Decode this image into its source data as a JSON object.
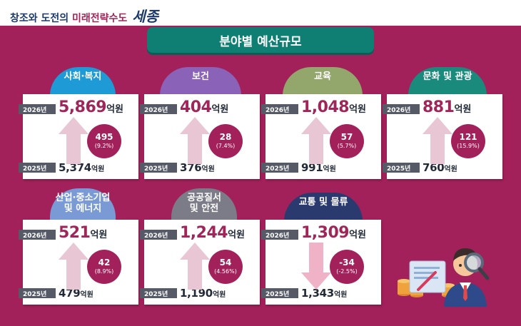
{
  "header": {
    "slogan_part1": "창조와 도전의",
    "slogan_part2": "미래전략수도",
    "slogan_part3": "세종"
  },
  "title": "분야별 예산규모",
  "colors": {
    "background": "#a3215a",
    "banner": "#0e7f72",
    "increase_arrow": "#e9c6d3",
    "decrease_arrow": "#f0b2c7"
  },
  "year_labels": {
    "current": "2026년",
    "previous": "2025년"
  },
  "unit_label": "억원",
  "categories": [
    {
      "name": "사회·복지",
      "y2026": "5,869",
      "y2025": "5,374",
      "diff": "495",
      "rate": "(9.2%)",
      "direction": "up",
      "color": "#1e9ad6"
    },
    {
      "name": "보건",
      "y2026": "404",
      "y2025": "376",
      "diff": "28",
      "rate": "(7.4%)",
      "direction": "up",
      "color": "#8a62b8"
    },
    {
      "name": "교육",
      "y2026": "1,048",
      "y2025": "991",
      "diff": "57",
      "rate": "(5.7%)",
      "direction": "up",
      "color": "#93a66b"
    },
    {
      "name": "문화 및 관광",
      "y2026": "881",
      "y2025": "760",
      "diff": "121",
      "rate": "(15.9%)",
      "direction": "up",
      "color": "#1a8a7c"
    },
    {
      "name": "산업·중소기업\n및 에너지",
      "y2026": "521",
      "y2025": "479",
      "diff": "42",
      "rate": "(8.9%)",
      "direction": "up",
      "color": "#7a9ad6"
    },
    {
      "name": "공공질서\n및 안전",
      "y2026": "1,244",
      "y2025": "1,190",
      "diff": "54",
      "rate": "(4.56%)",
      "direction": "up",
      "color": "#7c7c88"
    },
    {
      "name": "교통 및 물류",
      "y2026": "1,309",
      "y2025": "1,343",
      "diff": "-34",
      "rate": "(-2.5%)",
      "direction": "down",
      "color": "#2a3a6e"
    }
  ]
}
